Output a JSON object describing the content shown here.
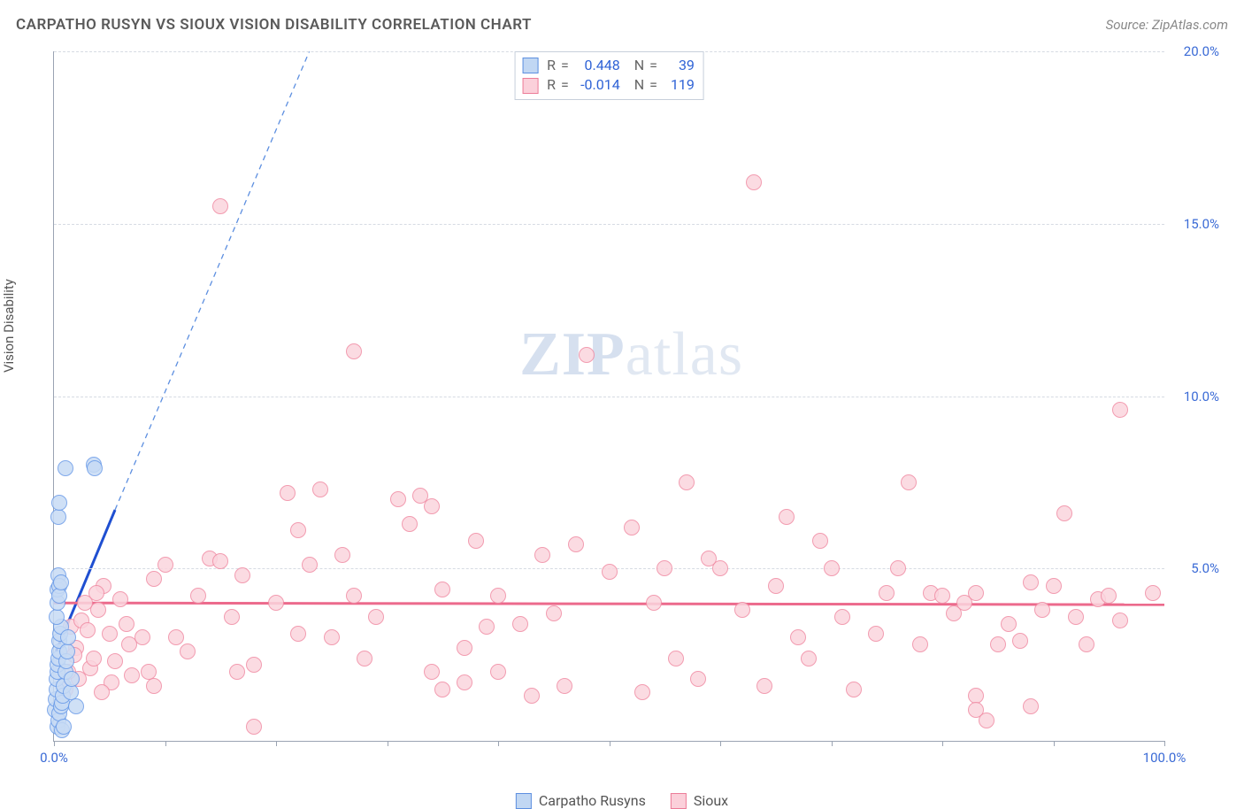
{
  "header": {
    "title": "CARPATHO RUSYN VS SIOUX VISION DISABILITY CORRELATION CHART",
    "source": "Source: ZipAtlas.com"
  },
  "watermark": {
    "bold": "ZIP",
    "rest": "atlas"
  },
  "chart": {
    "type": "scatter",
    "yaxis_label": "Vision Disability",
    "xlim": [
      0,
      100
    ],
    "ylim": [
      0,
      20
    ],
    "xticks": [
      0,
      10,
      20,
      30,
      40,
      50,
      60,
      70,
      80,
      90,
      100
    ],
    "xtick_labels": {
      "0": "0.0%",
      "100": "100.0%"
    },
    "yticks": [
      5,
      10,
      15,
      20
    ],
    "ytick_labels": {
      "5": "5.0%",
      "10": "10.0%",
      "15": "15.0%",
      "20": "20.0%"
    },
    "grid_color": "#d6dbe3",
    "axis_color": "#9aa3b2",
    "background_color": "#ffffff",
    "marker_radius": 9,
    "marker_stroke_width": 1.5,
    "series": [
      {
        "name": "Carpatho Rusyns",
        "fill": "#c7dbf5",
        "stroke": "#6a9be8",
        "swatch_fill": "#c1d7f3",
        "swatch_stroke": "#5d8fe0",
        "r": "0.448",
        "n": "39",
        "trend": {
          "solid": {
            "x1": 0.2,
            "y1": 2.6,
            "x2": 5.5,
            "y2": 6.7,
            "color": "#1f4fd1",
            "width": 3
          },
          "dashed": {
            "x1": 5.5,
            "y1": 6.7,
            "x2": 23,
            "y2": 20,
            "color": "#5d8fe0",
            "width": 1.3,
            "dash": "6 5"
          }
        },
        "points": [
          [
            0.1,
            0.9
          ],
          [
            0.15,
            1.2
          ],
          [
            0.2,
            1.5
          ],
          [
            0.25,
            1.8
          ],
          [
            0.3,
            2.0
          ],
          [
            0.35,
            2.2
          ],
          [
            0.4,
            2.4
          ],
          [
            0.45,
            2.6
          ],
          [
            0.5,
            2.9
          ],
          [
            0.55,
            3.1
          ],
          [
            0.6,
            3.3
          ],
          [
            0.3,
            0.4
          ],
          [
            0.4,
            0.6
          ],
          [
            0.5,
            0.8
          ],
          [
            0.6,
            1.0
          ],
          [
            0.7,
            1.1
          ],
          [
            0.8,
            1.3
          ],
          [
            0.9,
            1.6
          ],
          [
            1.0,
            2.0
          ],
          [
            1.1,
            2.3
          ],
          [
            1.2,
            2.6
          ],
          [
            0.2,
            3.6
          ],
          [
            0.3,
            4.0
          ],
          [
            0.35,
            4.4
          ],
          [
            0.4,
            4.8
          ],
          [
            0.5,
            4.5
          ],
          [
            0.5,
            4.2
          ],
          [
            0.6,
            4.6
          ],
          [
            0.4,
            6.5
          ],
          [
            0.5,
            6.9
          ],
          [
            1.0,
            7.9
          ],
          [
            3.6,
            8.0
          ],
          [
            3.7,
            7.9
          ],
          [
            0.7,
            0.3
          ],
          [
            0.9,
            0.4
          ],
          [
            1.5,
            1.4
          ],
          [
            1.6,
            1.8
          ],
          [
            2.0,
            1.0
          ],
          [
            1.3,
            3.0
          ]
        ]
      },
      {
        "name": "Sioux",
        "fill": "#fbd5de",
        "stroke": "#f08ba3",
        "swatch_fill": "#fbd0da",
        "swatch_stroke": "#ec7c98",
        "r": "-0.014",
        "n": "119",
        "trend": {
          "solid": {
            "x1": 0,
            "y1": 4.0,
            "x2": 100,
            "y2": 3.95,
            "color": "#ec6a8c",
            "width": 3
          }
        },
        "points": [
          [
            1.5,
            3.3
          ],
          [
            2.0,
            2.7
          ],
          [
            2.5,
            3.5
          ],
          [
            3.0,
            3.2
          ],
          [
            3.3,
            2.1
          ],
          [
            3.6,
            2.4
          ],
          [
            4.0,
            3.8
          ],
          [
            4.5,
            4.5
          ],
          [
            5.0,
            3.1
          ],
          [
            5.5,
            2.3
          ],
          [
            6.0,
            4.1
          ],
          [
            6.5,
            3.4
          ],
          [
            7.0,
            1.9
          ],
          [
            8.0,
            3.0
          ],
          [
            9.0,
            4.7
          ],
          [
            9.0,
            1.6
          ],
          [
            10.0,
            5.1
          ],
          [
            12.0,
            2.6
          ],
          [
            13.0,
            4.2
          ],
          [
            14.0,
            5.3
          ],
          [
            15.0,
            5.2
          ],
          [
            15.0,
            15.5
          ],
          [
            16.0,
            3.6
          ],
          [
            17.0,
            4.8
          ],
          [
            18.0,
            2.2
          ],
          [
            18.0,
            0.4
          ],
          [
            20.0,
            4.0
          ],
          [
            21.0,
            7.2
          ],
          [
            22.0,
            6.1
          ],
          [
            23.0,
            5.1
          ],
          [
            24.0,
            7.3
          ],
          [
            25.0,
            3.0
          ],
          [
            26.0,
            5.4
          ],
          [
            27.0,
            4.2
          ],
          [
            27.0,
            11.3
          ],
          [
            28.0,
            2.4
          ],
          [
            29.0,
            3.6
          ],
          [
            22.0,
            3.1
          ],
          [
            31.0,
            7.0
          ],
          [
            32.0,
            6.3
          ],
          [
            33.0,
            7.1
          ],
          [
            34.0,
            6.8
          ],
          [
            34.0,
            2.0
          ],
          [
            35.0,
            4.4
          ],
          [
            35.0,
            1.5
          ],
          [
            37.0,
            1.7
          ],
          [
            37.0,
            2.7
          ],
          [
            38.0,
            5.8
          ],
          [
            40.0,
            2.0
          ],
          [
            40.0,
            4.2
          ],
          [
            42.0,
            3.4
          ],
          [
            43.0,
            1.3
          ],
          [
            44.0,
            5.4
          ],
          [
            46.0,
            1.6
          ],
          [
            47.0,
            5.7
          ],
          [
            48.0,
            11.2
          ],
          [
            50.0,
            4.9
          ],
          [
            53.0,
            1.4
          ],
          [
            54.0,
            4.0
          ],
          [
            55.0,
            5.0
          ],
          [
            56.0,
            2.4
          ],
          [
            57.0,
            7.5
          ],
          [
            58.0,
            1.8
          ],
          [
            59.0,
            5.3
          ],
          [
            63.0,
            16.2
          ],
          [
            62.0,
            3.8
          ],
          [
            64.0,
            1.6
          ],
          [
            65.0,
            4.5
          ],
          [
            66.0,
            6.5
          ],
          [
            67.0,
            3.0
          ],
          [
            68.0,
            2.4
          ],
          [
            69.0,
            5.8
          ],
          [
            70.0,
            5.0
          ],
          [
            71.0,
            3.6
          ],
          [
            72.0,
            1.5
          ],
          [
            74.0,
            3.1
          ],
          [
            75.0,
            4.3
          ],
          [
            76.0,
            5.0
          ],
          [
            77.0,
            7.5
          ],
          [
            78.0,
            2.8
          ],
          [
            79.0,
            4.3
          ],
          [
            80.0,
            4.2
          ],
          [
            81.0,
            3.7
          ],
          [
            82.0,
            4.0
          ],
          [
            83.0,
            4.3
          ],
          [
            83.0,
            1.3
          ],
          [
            83.0,
            0.9
          ],
          [
            84.0,
            0.6
          ],
          [
            85.0,
            2.8
          ],
          [
            86.0,
            3.4
          ],
          [
            87.0,
            2.9
          ],
          [
            88.0,
            4.6
          ],
          [
            88.0,
            1.0
          ],
          [
            89.0,
            3.8
          ],
          [
            90.0,
            4.5
          ],
          [
            91.0,
            6.6
          ],
          [
            92.0,
            3.6
          ],
          [
            93.0,
            2.8
          ],
          [
            94.0,
            4.1
          ],
          [
            95.0,
            4.2
          ],
          [
            96.0,
            3.5
          ],
          [
            96.0,
            9.6
          ],
          [
            99.0,
            4.3
          ],
          [
            16.5,
            2.0
          ],
          [
            11.0,
            3.0
          ],
          [
            8.5,
            2.0
          ],
          [
            5.2,
            1.7
          ],
          [
            6.8,
            2.8
          ],
          [
            4.3,
            1.4
          ],
          [
            3.8,
            4.3
          ],
          [
            2.8,
            4.0
          ],
          [
            2.2,
            1.8
          ],
          [
            1.8,
            2.5
          ],
          [
            1.3,
            2.0
          ],
          [
            1.0,
            1.5
          ],
          [
            60.0,
            5.0
          ],
          [
            52.0,
            6.2
          ],
          [
            45.0,
            3.7
          ],
          [
            39.0,
            3.3
          ]
        ]
      }
    ],
    "legend": [
      {
        "label": "Carpatho Rusyns",
        "series_idx": 0
      },
      {
        "label": "Sioux",
        "series_idx": 1
      }
    ]
  }
}
